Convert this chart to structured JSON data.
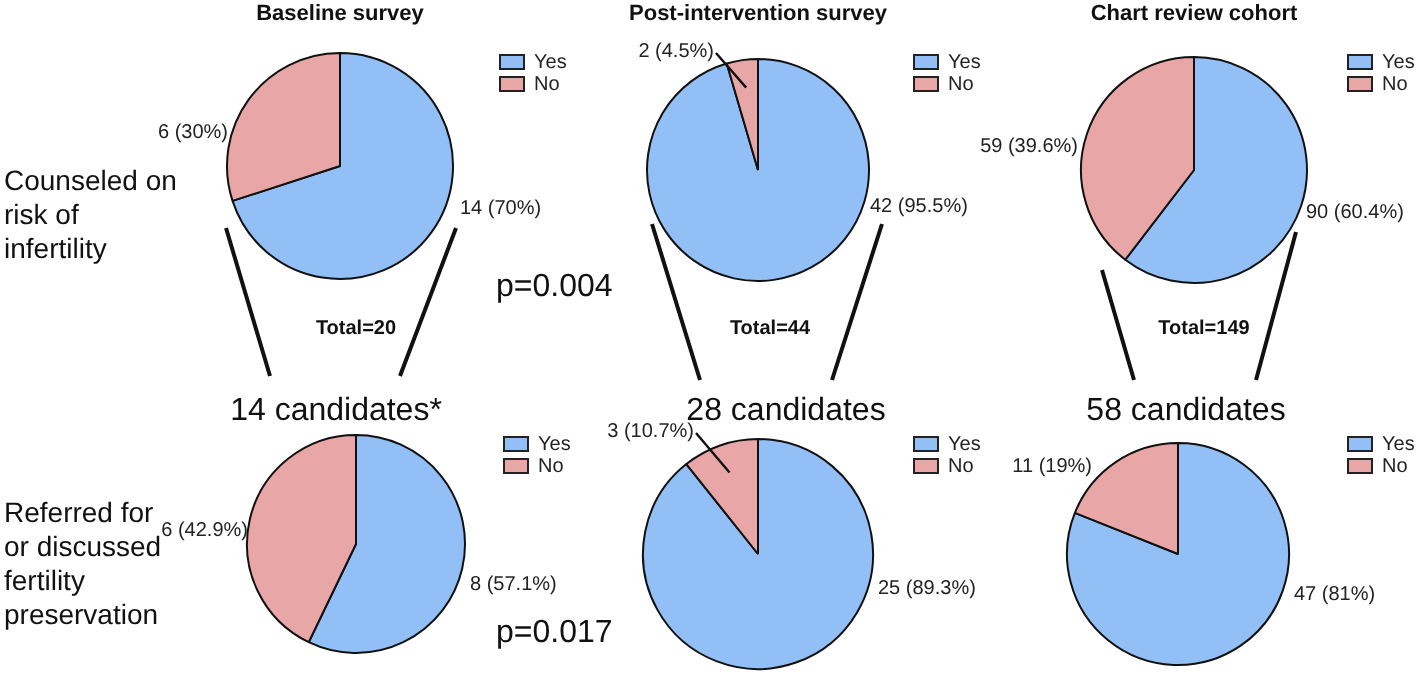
{
  "chart_data": [
    {
      "type": "pie",
      "title": "Baseline survey",
      "categories": [
        "Yes",
        "No"
      ],
      "values": [
        14,
        6
      ],
      "colors": [
        "#92bff5",
        "#e8a6a6"
      ],
      "value_labels": [
        "14 (70%)",
        "6 (30%)"
      ],
      "legend": "top right",
      "annotations": [
        "Counseled on risk of infertility",
        "Total=20",
        "p=0.004"
      ]
    },
    {
      "type": "pie",
      "title": "Post-intervention survey",
      "categories": [
        "Yes",
        "No"
      ],
      "values": [
        42,
        2
      ],
      "colors": [
        "#92bff5",
        "#e8a6a6"
      ],
      "value_labels": [
        "42 (95.5%)",
        "2 (4.5%)"
      ],
      "legend": "top right",
      "annotations": [
        "Total=44"
      ]
    },
    {
      "type": "pie",
      "title": "Chart review cohort",
      "categories": [
        "Yes",
        "No"
      ],
      "values": [
        90,
        59
      ],
      "colors": [
        "#92bff5",
        "#e8a6a6"
      ],
      "value_labels": [
        "90 (60.4%)",
        "59 (39.6%)"
      ],
      "legend": "top right",
      "annotations": [
        "Total=149"
      ]
    },
    {
      "type": "pie",
      "title": "14 candidates*",
      "categories": [
        "Yes",
        "No"
      ],
      "values": [
        8,
        6
      ],
      "colors": [
        "#92bff5",
        "#e8a6a6"
      ],
      "value_labels": [
        "8 (57.1%)",
        "6 (42.9%)"
      ],
      "legend": "top right",
      "annotations": [
        "Referred for or discussed fertility preservation",
        "p=0.017"
      ]
    },
    {
      "type": "pie",
      "title": "28 candidates",
      "categories": [
        "Yes",
        "No"
      ],
      "values": [
        25,
        3
      ],
      "colors": [
        "#92bff5",
        "#e8a6a6"
      ],
      "value_labels": [
        "25 (89.3%)",
        "3 (10.7%)"
      ],
      "legend": "top right"
    },
    {
      "type": "pie",
      "title": "58 candidates",
      "categories": [
        "Yes",
        "No"
      ],
      "values": [
        47,
        11
      ],
      "colors": [
        "#92bff5",
        "#e8a6a6"
      ],
      "value_labels": [
        "47 (81%)",
        "11 (19%)"
      ],
      "legend": "top right"
    }
  ]
}
